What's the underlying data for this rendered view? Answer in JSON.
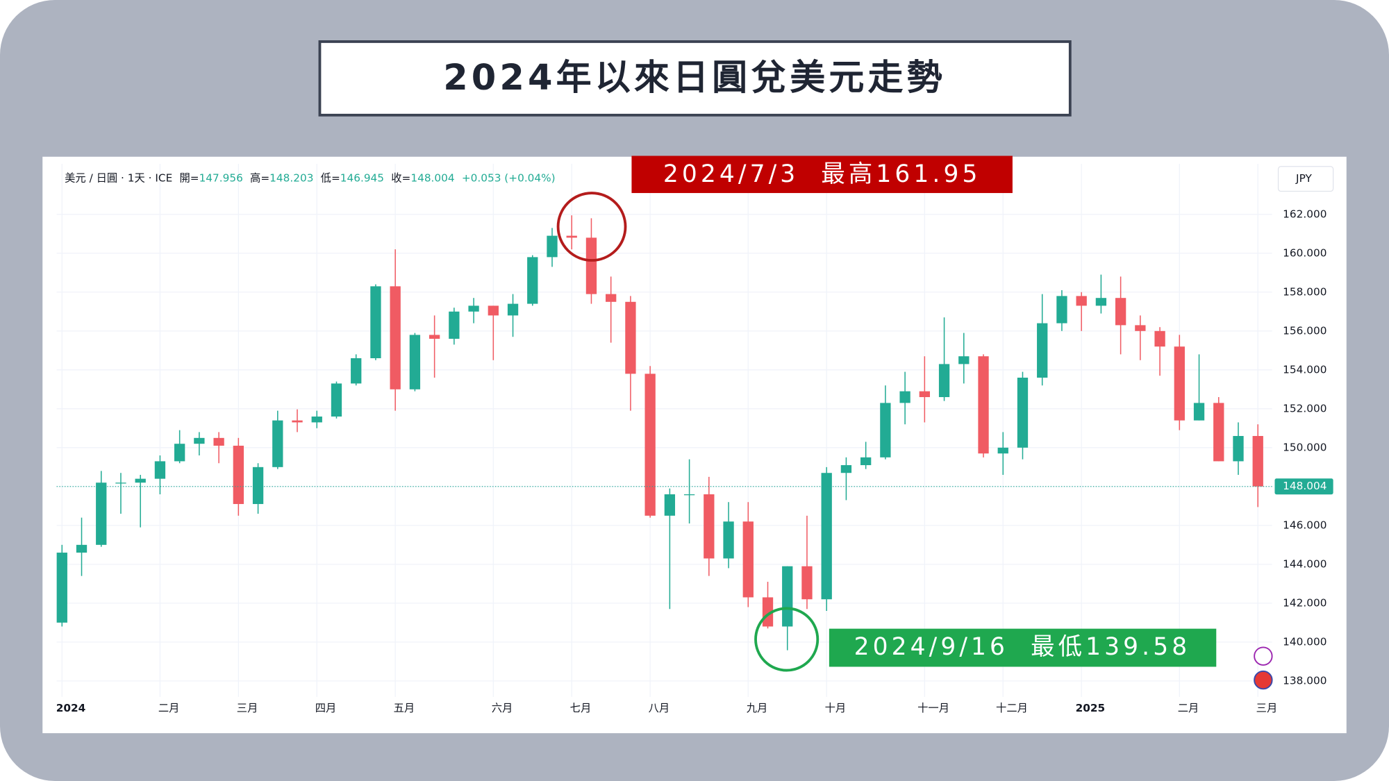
{
  "chart_data": {
    "type": "candlestick",
    "title": "2024年以來日圓兌美元走勢",
    "header": {
      "symbol": "美元 / 日圓 · 1天 · ICE",
      "fields": [
        {
          "label": "開=",
          "value": "147.956"
        },
        {
          "label": "高=",
          "value": "148.203"
        },
        {
          "label": "低=",
          "value": "146.945"
        },
        {
          "label": "收=",
          "value": "148.004"
        }
      ],
      "change": "+0.053 (+0.04%)"
    },
    "currency": "JPY",
    "annotations": [
      {
        "text": "2024/7/3  最高161.95"
      },
      {
        "text": "2024/9/16  最低139.58"
      }
    ],
    "categories": [
      "2024",
      null,
      null,
      null,
      null,
      "二月",
      null,
      null,
      null,
      "三月",
      null,
      null,
      null,
      "四月",
      null,
      null,
      null,
      "五月",
      null,
      null,
      null,
      null,
      "六月",
      null,
      null,
      null,
      "七月",
      null,
      null,
      null,
      "八月",
      null,
      null,
      null,
      null,
      "九月",
      null,
      null,
      null,
      "十月",
      null,
      null,
      null,
      null,
      "十一月",
      null,
      null,
      null,
      "十二月",
      null,
      null,
      null,
      "2025",
      null,
      null,
      null,
      null,
      "二月",
      null,
      null,
      null,
      "三月"
    ],
    "open": [
      141.0,
      144.6,
      145.0,
      148.2,
      148.2,
      148.4,
      149.3,
      150.2,
      150.5,
      150.1,
      147.1,
      149.0,
      151.4,
      151.3,
      151.6,
      153.3,
      154.6,
      158.3,
      153.0,
      155.8,
      155.6,
      157.0,
      157.3,
      156.8,
      157.4,
      159.8,
      160.9,
      160.8,
      157.9,
      157.5,
      153.8,
      146.5,
      147.6,
      147.6,
      144.3,
      146.2,
      142.3,
      140.8,
      143.9,
      142.2,
      148.7,
      149.1,
      149.5,
      152.3,
      152.9,
      152.6,
      154.3,
      154.7,
      149.7,
      150.0,
      153.6,
      156.4,
      157.8,
      157.3,
      157.7,
      156.3,
      156.0,
      155.2,
      151.4,
      152.3,
      149.3,
      150.6
    ],
    "high": [
      145.0,
      146.4,
      148.8,
      148.7,
      148.6,
      149.6,
      150.9,
      150.8,
      150.8,
      150.5,
      149.2,
      151.9,
      151.97,
      151.9,
      153.4,
      154.8,
      158.4,
      160.2,
      155.9,
      156.8,
      157.2,
      157.7,
      157.3,
      157.9,
      159.9,
      161.3,
      161.95,
      161.8,
      158.8,
      157.8,
      154.2,
      147.9,
      149.4,
      148.5,
      147.2,
      147.2,
      143.1,
      143.9,
      146.5,
      149.0,
      149.5,
      150.3,
      153.2,
      153.9,
      154.7,
      156.7,
      155.9,
      154.8,
      150.8,
      153.9,
      157.9,
      158.1,
      158.0,
      158.9,
      158.8,
      156.8,
      156.2,
      155.8,
      154.8,
      152.6,
      151.3,
      151.2
    ],
    "low": [
      140.8,
      143.4,
      144.9,
      146.6,
      145.9,
      147.6,
      149.2,
      149.6,
      149.2,
      146.5,
      146.6,
      148.9,
      150.8,
      151.0,
      151.5,
      153.2,
      154.5,
      151.9,
      152.9,
      153.6,
      155.3,
      156.4,
      154.5,
      155.7,
      157.3,
      159.3,
      160.2,
      157.4,
      155.4,
      151.9,
      146.4,
      141.7,
      146.1,
      143.4,
      143.8,
      141.8,
      140.7,
      139.58,
      141.7,
      141.6,
      147.3,
      148.9,
      149.4,
      151.2,
      151.3,
      152.4,
      153.3,
      149.5,
      148.6,
      149.4,
      153.2,
      156.0,
      156.0,
      156.9,
      154.8,
      154.5,
      153.7,
      150.9,
      151.4,
      149.3,
      148.6,
      146.945
    ],
    "close": [
      144.6,
      145.0,
      148.2,
      148.2,
      148.4,
      149.3,
      150.2,
      150.5,
      150.1,
      147.1,
      149.0,
      151.4,
      151.3,
      151.6,
      153.3,
      154.6,
      158.3,
      153.0,
      155.8,
      155.6,
      157.0,
      157.3,
      156.8,
      157.4,
      159.8,
      160.9,
      160.8,
      157.9,
      157.5,
      153.8,
      146.5,
      147.6,
      147.6,
      144.3,
      146.2,
      142.3,
      140.8,
      143.9,
      142.2,
      148.7,
      149.1,
      149.5,
      152.3,
      152.9,
      152.6,
      154.3,
      154.7,
      149.7,
      150.0,
      153.6,
      156.4,
      157.8,
      157.3,
      157.7,
      156.3,
      156.0,
      155.2,
      151.4,
      152.3,
      149.3,
      150.6,
      148.004
    ],
    "up_color": "#22ab94",
    "down_color": "#f05b63",
    "last_price": {
      "value": 148.004,
      "label": "148.004"
    },
    "ylim": [
      137.18,
      164.6
    ],
    "yticks": [
      {
        "value": 138,
        "label": "138.000"
      },
      {
        "value": 140,
        "label": "140.000"
      },
      {
        "value": 142,
        "label": "142.000"
      },
      {
        "value": 144,
        "label": "144.000"
      },
      {
        "value": 146,
        "label": "146.000"
      },
      {
        "value": 148,
        "label": "148.000"
      },
      {
        "value": 150,
        "label": "150.000"
      },
      {
        "value": 152,
        "label": "152.000"
      },
      {
        "value": 154,
        "label": "154.000"
      },
      {
        "value": 156,
        "label": "156.000"
      },
      {
        "value": 158,
        "label": "158.000"
      },
      {
        "value": 160,
        "label": "160.000"
      },
      {
        "value": 162,
        "label": "162.000"
      }
    ],
    "grid": true
  }
}
